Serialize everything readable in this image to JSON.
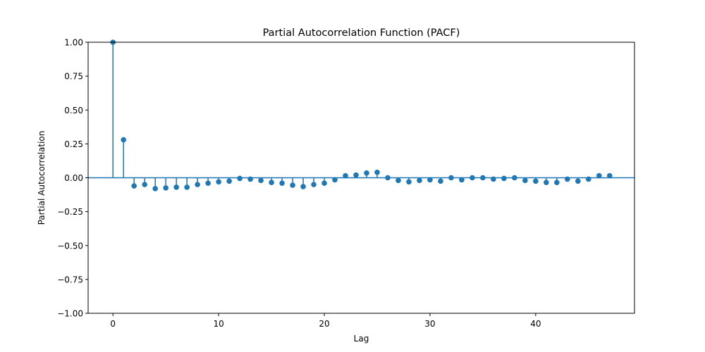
{
  "chart_data": {
    "type": "stem",
    "title": "Partial Autocorrelation Function (PACF)",
    "xlabel": "Lag",
    "ylabel": "Partial Autocorrelation",
    "xlim": [
      -2.35,
      49.35
    ],
    "ylim": [
      -1.0,
      1.0
    ],
    "x_ticks": [
      0,
      10,
      20,
      30,
      40
    ],
    "x_tick_labels": [
      "0",
      "10",
      "20",
      "30",
      "40"
    ],
    "y_ticks": [
      -1.0,
      -0.75,
      -0.5,
      -0.25,
      0.0,
      0.25,
      0.5,
      0.75,
      1.0
    ],
    "y_tick_labels": [
      "−1.00",
      "−0.75",
      "−0.50",
      "−0.25",
      "0.00",
      "0.25",
      "0.50",
      "0.75",
      "1.00"
    ],
    "grid": false,
    "color": "#1f77b4",
    "x": [
      0,
      1,
      2,
      3,
      4,
      5,
      6,
      7,
      8,
      9,
      10,
      11,
      12,
      13,
      14,
      15,
      16,
      17,
      18,
      19,
      20,
      21,
      22,
      23,
      24,
      25,
      26,
      27,
      28,
      29,
      30,
      31,
      32,
      33,
      34,
      35,
      36,
      37,
      38,
      39,
      40,
      41,
      42,
      43,
      44,
      45,
      46,
      47
    ],
    "values": [
      1.0,
      0.28,
      -0.06,
      -0.05,
      -0.08,
      -0.075,
      -0.07,
      -0.07,
      -0.05,
      -0.04,
      -0.03,
      -0.025,
      -0.005,
      -0.01,
      -0.02,
      -0.035,
      -0.04,
      -0.055,
      -0.065,
      -0.05,
      -0.04,
      -0.015,
      0.015,
      0.02,
      0.035,
      0.04,
      0.0,
      -0.02,
      -0.03,
      -0.02,
      -0.015,
      -0.025,
      0.0,
      -0.015,
      0.0,
      0.0,
      -0.01,
      -0.005,
      0.0,
      -0.02,
      -0.025,
      -0.035,
      -0.035,
      -0.01,
      -0.025,
      -0.01,
      0.015,
      0.015
    ]
  }
}
